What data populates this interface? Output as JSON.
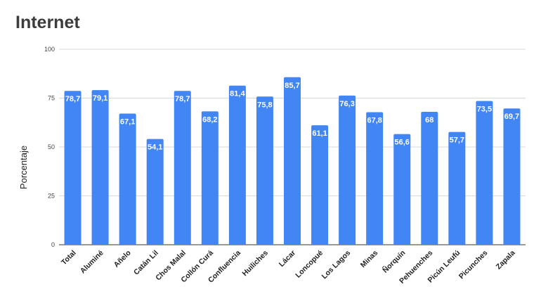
{
  "chart_data": {
    "type": "bar",
    "title": "Internet",
    "xlabel": "",
    "ylabel": "Porcentaje",
    "ylim": [
      0,
      100
    ],
    "yticks": [
      0,
      25,
      50,
      75,
      100
    ],
    "grid": true,
    "bar_color": "#4285f4",
    "categories": [
      "Total",
      "Aluminé",
      "Añelo",
      "Catán Lil",
      "Chos Malal",
      "Collón Curá",
      "Confluencia",
      "Huiliches",
      "Lácar",
      "Loncopué",
      "Los Lagos",
      "Minas",
      "Ñorquín",
      "Pehuenches",
      "Picún Leufú",
      "Picunches",
      "Zapala"
    ],
    "values": [
      78.7,
      79.1,
      67.1,
      54.1,
      78.7,
      68.2,
      81.4,
      75.8,
      85.7,
      61.1,
      76.3,
      67.8,
      56.6,
      68,
      57.7,
      73.5,
      69.7
    ],
    "value_labels": [
      "78,7",
      "79,1",
      "67,1",
      "54,1",
      "78,7",
      "68,2",
      "81,4",
      "75,8",
      "85,7",
      "61,1",
      "76,3",
      "67,8",
      "56,6",
      "68",
      "57,7",
      "73,5",
      "69,7"
    ]
  }
}
